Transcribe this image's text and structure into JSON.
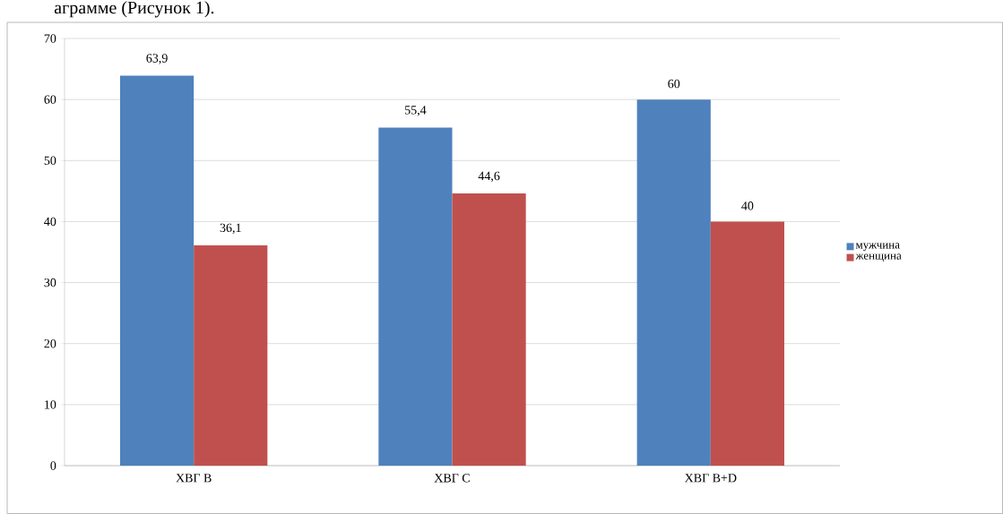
{
  "chart_data": {
    "type": "bar",
    "annotations": [
      "аграмме (Рисунок 1)."
    ],
    "categories": [
      "ХВГ В",
      "ХВГ С",
      "ХВГ В+D"
    ],
    "series": [
      {
        "name": "мужчина",
        "color": "#4f81bd",
        "values": [
          63.9,
          55.4,
          60
        ],
        "value_labels": [
          "63,9",
          "55,4",
          "60"
        ]
      },
      {
        "name": "женщина",
        "color": "#c0504d",
        "values": [
          36.1,
          44.6,
          40
        ],
        "value_labels": [
          "36,1",
          "44,6",
          "40"
        ]
      }
    ],
    "ylim": [
      0,
      70
    ],
    "yticks": [
      0,
      10,
      20,
      30,
      40,
      50,
      60,
      70
    ],
    "grid": "y",
    "legend": "right"
  }
}
